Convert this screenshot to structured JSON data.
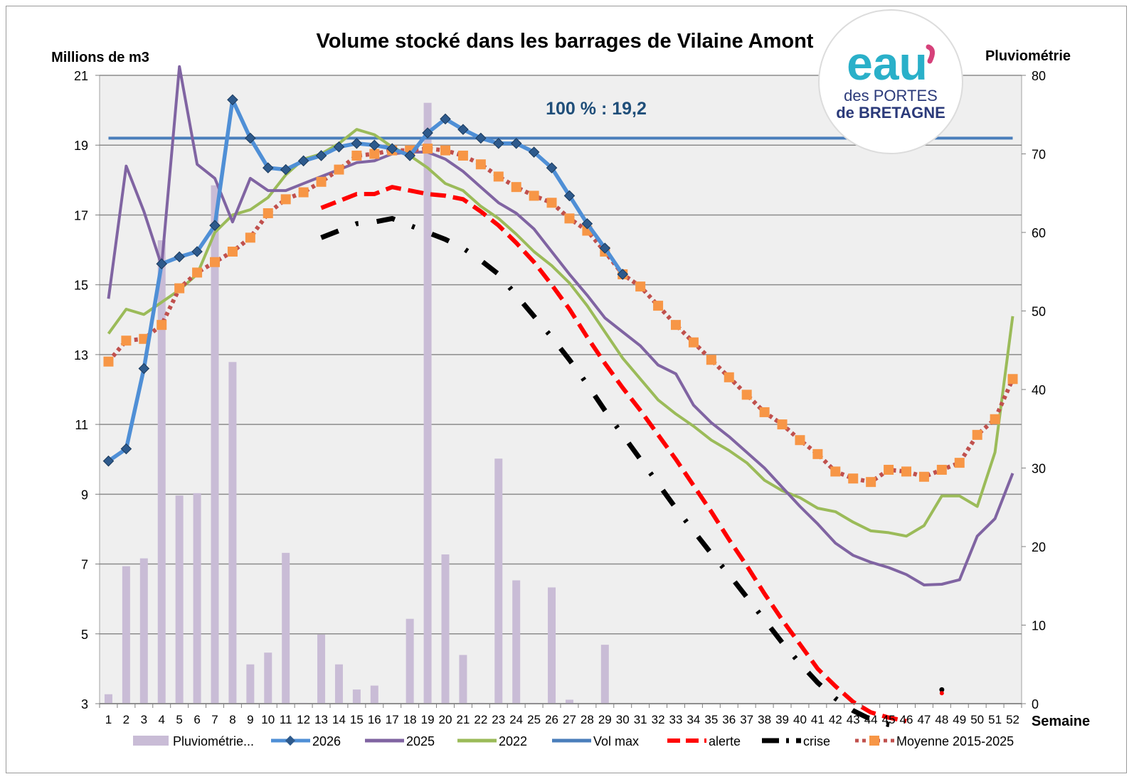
{
  "chart_data": {
    "type": "line",
    "title": "Volume stocké dans les barrages de Vilaine Amont",
    "ylabel": "Millions de m3",
    "y2label": "Pluviométrie",
    "xlabel": "Semaine",
    "ylim": [
      3,
      21
    ],
    "yticks": [
      3,
      5,
      7,
      9,
      11,
      13,
      15,
      17,
      19,
      21
    ],
    "y2lim": [
      0,
      80
    ],
    "y2ticks": [
      0,
      10,
      20,
      30,
      40,
      50,
      60,
      70,
      80
    ],
    "categories": [
      "1",
      "2",
      "3",
      "4",
      "5",
      "6",
      "7",
      "8",
      "9",
      "10",
      "11",
      "12",
      "13",
      "14",
      "15",
      "16",
      "17",
      "18",
      "19",
      "20",
      "21",
      "22",
      "23",
      "24",
      "25",
      "26",
      "27",
      "28",
      "29",
      "30",
      "31",
      "32",
      "33",
      "34",
      "35",
      "36",
      "37",
      "38",
      "39",
      "40",
      "41",
      "42",
      "43",
      "44",
      "45",
      "46",
      "47",
      "48",
      "49",
      "50",
      "51",
      "52"
    ],
    "annotation": "100 % : 19,2",
    "grid": true,
    "legend_position": "bottom",
    "bars": {
      "name": "Pluviométrie...",
      "axis": "right",
      "color": "#c9bcd6",
      "values": [
        1.2,
        17.5,
        18.5,
        59,
        26.5,
        26.8,
        66,
        43.5,
        5,
        6.5,
        19.2,
        0.1,
        8.8,
        5,
        1.8,
        2.3,
        0,
        10.8,
        76.5,
        19,
        6.2,
        0.1,
        31.2,
        15.7,
        0.1,
        14.8,
        0.5,
        0,
        7.5,
        0,
        0,
        0,
        0,
        0,
        0,
        0,
        0,
        0,
        0,
        0,
        0,
        0,
        0,
        0,
        0,
        0,
        0,
        0,
        0,
        0,
        0,
        0
      ]
    },
    "series": [
      {
        "name": "2026",
        "color": "#4f8fd6",
        "style": "solid-marker",
        "values": [
          9.95,
          10.3,
          12.6,
          15.6,
          15.8,
          15.95,
          16.7,
          20.3,
          19.2,
          18.35,
          18.3,
          18.55,
          18.7,
          18.95,
          19.05,
          19.0,
          18.9,
          18.7,
          19.35,
          19.75,
          19.45,
          19.2,
          19.05,
          19.05,
          18.8,
          18.35,
          17.55,
          16.75,
          16.05,
          15.3,
          null,
          null,
          null,
          null,
          null,
          null,
          null,
          null,
          null,
          null,
          null,
          null,
          null,
          null,
          null,
          null,
          null,
          null,
          null,
          null,
          null,
          null
        ]
      },
      {
        "name": "2025",
        "color": "#8064a2",
        "style": "solid",
        "values": [
          14.6,
          18.4,
          17.1,
          15.55,
          21.25,
          18.45,
          18.05,
          16.8,
          18.05,
          17.7,
          17.7,
          17.9,
          18.1,
          18.3,
          18.5,
          18.55,
          18.75,
          18.8,
          18.8,
          18.6,
          18.25,
          17.8,
          17.35,
          17.05,
          16.6,
          15.95,
          15.3,
          14.7,
          14.05,
          13.65,
          13.25,
          12.7,
          12.45,
          11.55,
          11.05,
          10.65,
          10.2,
          9.75,
          9.2,
          8.65,
          8.15,
          7.6,
          7.25,
          7.05,
          6.9,
          6.7,
          6.4,
          6.42,
          6.55,
          7.8,
          8.3,
          9.6
        ]
      },
      {
        "name": "2022",
        "color": "#9bbb59",
        "style": "solid",
        "values": [
          13.6,
          14.3,
          14.15,
          14.5,
          14.85,
          15.3,
          16.5,
          17.0,
          17.15,
          17.5,
          18.15,
          18.6,
          18.75,
          19.05,
          19.45,
          19.3,
          18.95,
          18.7,
          18.35,
          17.9,
          17.7,
          17.25,
          16.9,
          16.45,
          15.95,
          15.55,
          15.05,
          14.4,
          13.65,
          12.9,
          12.3,
          11.7,
          11.3,
          10.95,
          10.55,
          10.25,
          9.9,
          9.4,
          9.1,
          8.9,
          8.6,
          8.5,
          8.2,
          7.95,
          7.9,
          7.8,
          8.1,
          8.95,
          8.95,
          8.65,
          10.2,
          14.1
        ]
      },
      {
        "name": "Vol max",
        "color": "#4a7ebb",
        "style": "solid",
        "values": [
          19.2,
          19.2,
          19.2,
          19.2,
          19.2,
          19.2,
          19.2,
          19.2,
          19.2,
          19.2,
          19.2,
          19.2,
          19.2,
          19.2,
          19.2,
          19.2,
          19.2,
          19.2,
          19.2,
          19.2,
          19.2,
          19.2,
          19.2,
          19.2,
          19.2,
          19.2,
          19.2,
          19.2,
          19.2,
          19.2,
          19.2,
          19.2,
          19.2,
          19.2,
          19.2,
          19.2,
          19.2,
          19.2,
          19.2,
          19.2,
          19.2,
          19.2,
          19.2,
          19.2,
          19.2,
          19.2,
          19.2,
          19.2,
          19.2,
          19.2,
          19.2,
          19.2
        ]
      },
      {
        "name": "alerte",
        "color": "#ff0000",
        "style": "dashed",
        "values": [
          null,
          null,
          null,
          null,
          null,
          null,
          null,
          null,
          null,
          null,
          null,
          null,
          17.2,
          17.4,
          17.6,
          17.6,
          17.8,
          17.7,
          17.6,
          17.55,
          17.45,
          17.1,
          16.7,
          16.2,
          15.65,
          15.0,
          14.3,
          13.5,
          12.75,
          12.05,
          11.4,
          10.7,
          10.0,
          9.25,
          8.5,
          7.7,
          6.95,
          6.15,
          5.4,
          4.7,
          4.0,
          3.5,
          3.05,
          2.75,
          2.6,
          2.5,
          null,
          3.3,
          null,
          null,
          null,
          null
        ]
      },
      {
        "name": "crise",
        "color": "#000000",
        "style": "dashdot",
        "values": [
          null,
          null,
          null,
          null,
          null,
          null,
          null,
          null,
          null,
          null,
          null,
          null,
          16.35,
          16.55,
          16.75,
          16.8,
          16.9,
          16.7,
          16.5,
          16.3,
          16.05,
          15.7,
          15.3,
          14.7,
          14.1,
          13.5,
          12.85,
          12.15,
          11.4,
          10.7,
          10.0,
          9.3,
          8.6,
          7.95,
          7.3,
          6.7,
          6.05,
          5.4,
          4.75,
          4.15,
          3.6,
          3.15,
          2.8,
          2.55,
          2.4,
          2.3,
          null,
          3.4,
          null,
          null,
          null,
          null
        ]
      },
      {
        "name": "Moyenne 2015-2025",
        "color": "#c0504d",
        "marker_color": "#f79646",
        "style": "dotted-marker",
        "values": [
          12.8,
          13.4,
          13.45,
          13.85,
          14.9,
          15.35,
          15.65,
          15.95,
          16.35,
          17.05,
          17.45,
          17.65,
          17.95,
          18.3,
          18.7,
          18.75,
          18.85,
          18.85,
          18.9,
          18.85,
          18.7,
          18.45,
          18.1,
          17.8,
          17.55,
          17.35,
          16.9,
          16.55,
          15.95,
          15.3,
          14.95,
          14.4,
          13.85,
          13.35,
          12.85,
          12.35,
          11.85,
          11.35,
          11.0,
          10.55,
          10.15,
          9.65,
          9.45,
          9.35,
          9.7,
          9.65,
          9.5,
          9.7,
          9.9,
          10.7,
          11.15,
          12.3
        ]
      }
    ]
  },
  "logo": {
    "word": "eau",
    "line1": "des PORTES",
    "line2": "de BRETAGNE",
    "colors": {
      "teal": "#2ab0c9",
      "navy": "#2b3a7a",
      "pink": "#d6417a"
    }
  }
}
